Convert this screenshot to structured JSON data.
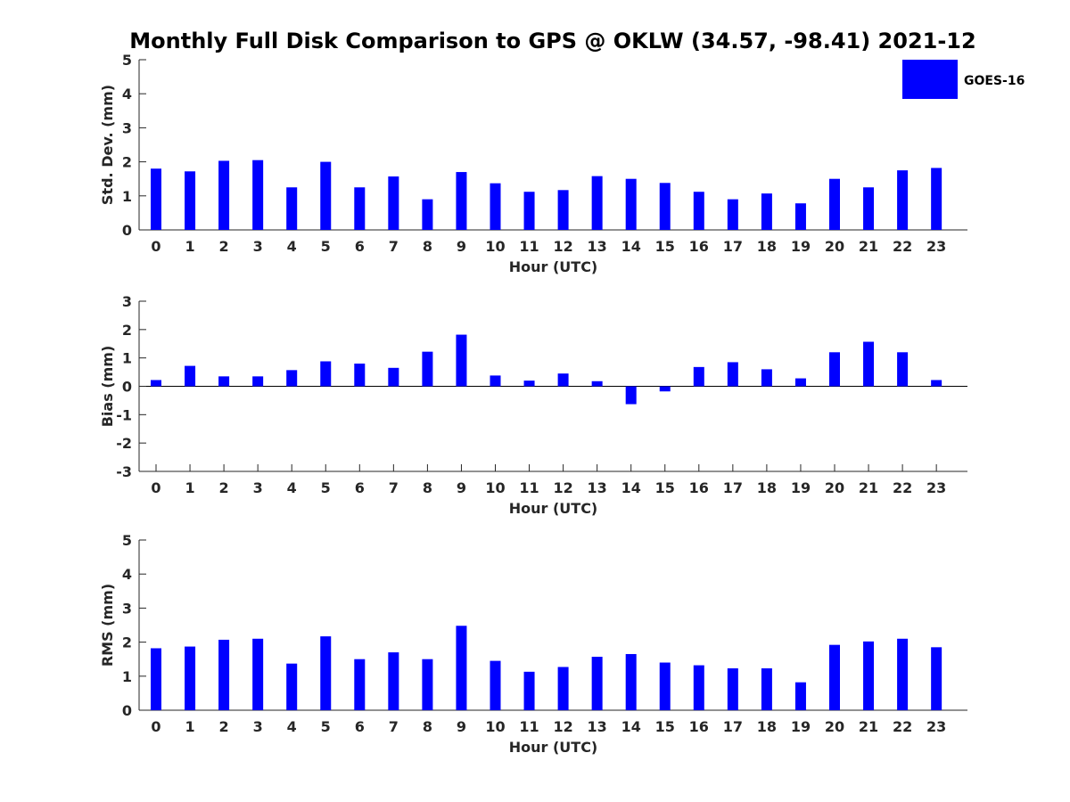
{
  "chart_data": {
    "type": "bar",
    "title": "Monthly Full Disk Comparison to GPS @ OKLW (34.57, -98.41) 2021-12",
    "legend": {
      "placement": "top-right",
      "entries": [
        {
          "label": "GOES-16",
          "color": "#0000ff"
        }
      ]
    },
    "categories": [
      "0",
      "1",
      "2",
      "3",
      "4",
      "5",
      "6",
      "7",
      "8",
      "9",
      "10",
      "11",
      "12",
      "13",
      "14",
      "15",
      "16",
      "17",
      "18",
      "19",
      "20",
      "21",
      "22",
      "23"
    ],
    "subplots": [
      {
        "id": "std",
        "ylabel": "Std. Dev. (mm)",
        "xlabel": "Hour (UTC)",
        "ylim": [
          0,
          5
        ],
        "yticks": [
          "0",
          "1",
          "2",
          "3",
          "4",
          "5"
        ],
        "series": [
          {
            "name": "GOES-16",
            "color": "#0000ff",
            "values": [
              1.8,
              1.72,
              2.03,
              2.05,
              1.25,
              2.0,
              1.25,
              1.57,
              0.9,
              1.7,
              1.37,
              1.12,
              1.17,
              1.58,
              1.5,
              1.38,
              1.12,
              0.9,
              1.07,
              0.78,
              1.5,
              1.25,
              1.75,
              1.82
            ]
          }
        ]
      },
      {
        "id": "bias",
        "ylabel": "Bias (mm)",
        "xlabel": "Hour (UTC)",
        "ylim": [
          -3,
          3
        ],
        "yticks": [
          "-3",
          "-2",
          "-1",
          "0",
          "1",
          "2",
          "3"
        ],
        "series": [
          {
            "name": "GOES-16",
            "color": "#0000ff",
            "values": [
              0.22,
              0.72,
              0.35,
              0.35,
              0.57,
              0.88,
              0.8,
              0.65,
              1.22,
              1.82,
              0.38,
              0.2,
              0.45,
              0.18,
              -0.63,
              -0.18,
              0.68,
              0.85,
              0.6,
              0.28,
              1.2,
              1.57,
              1.2,
              0.22
            ]
          }
        ]
      },
      {
        "id": "rms",
        "ylabel": "RMS (mm)",
        "xlabel": "Hour (UTC)",
        "ylim": [
          0,
          5
        ],
        "yticks": [
          "0",
          "1",
          "2",
          "3",
          "4",
          "5"
        ],
        "series": [
          {
            "name": "GOES-16",
            "color": "#0000ff",
            "values": [
              1.82,
              1.87,
              2.07,
              2.1,
              1.37,
              2.17,
              1.5,
              1.7,
              1.5,
              2.48,
              1.45,
              1.13,
              1.27,
              1.57,
              1.65,
              1.4,
              1.32,
              1.23,
              1.23,
              0.82,
              1.92,
              2.02,
              2.1,
              1.85
            ]
          }
        ]
      }
    ]
  }
}
